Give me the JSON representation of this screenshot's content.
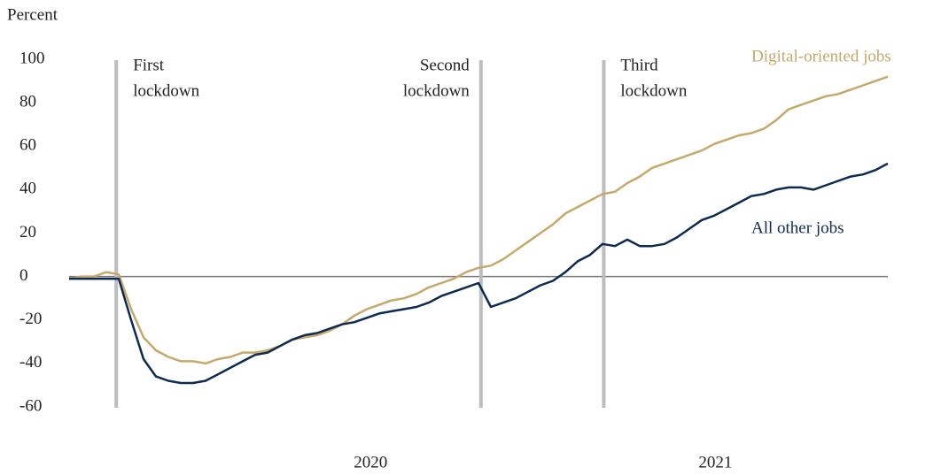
{
  "chart_data": {
    "type": "line",
    "y_axis_label": "Percent",
    "x": [
      0,
      1,
      2,
      3,
      4,
      5,
      6,
      7,
      8,
      9,
      10,
      11,
      12,
      13,
      14,
      15,
      16,
      17,
      18,
      19,
      20,
      21,
      22,
      23,
      24,
      25,
      26,
      27,
      28,
      29,
      30,
      31,
      32,
      33,
      34,
      35,
      36,
      37,
      38,
      39,
      40,
      41,
      42,
      43,
      44,
      45,
      46,
      47,
      48,
      49,
      50,
      51,
      52,
      53,
      54,
      55,
      56,
      57,
      58,
      59,
      60,
      61,
      62,
      63,
      64,
      65,
      66
    ],
    "series": [
      {
        "name": "Digital-oriented jobs",
        "color": "#c5a96a",
        "values": [
          -1,
          0,
          0,
          2,
          1,
          -15,
          -28,
          -34,
          -37,
          -39,
          -39,
          -40,
          -38,
          -37,
          -35,
          -35,
          -34,
          -32,
          -29,
          -28,
          -27,
          -25,
          -22,
          -18,
          -15,
          -13,
          -11,
          -10,
          -8,
          -5,
          -3,
          -1,
          2,
          4,
          5,
          8,
          12,
          16,
          20,
          24,
          29,
          32,
          35,
          38,
          39,
          43,
          46,
          50,
          52,
          54,
          56,
          58,
          61,
          63,
          65,
          66,
          68,
          72,
          77,
          79,
          81,
          83,
          84,
          86,
          88,
          90,
          92
        ]
      },
      {
        "name": "All other jobs",
        "color": "#0c2a52",
        "values": [
          -1,
          -1,
          -1,
          -1,
          -1,
          -20,
          -38,
          -46,
          -48,
          -49,
          -49,
          -48,
          -45,
          -42,
          -39,
          -36,
          -35,
          -32,
          -29,
          -27,
          -26,
          -24,
          -22,
          -21,
          -19,
          -17,
          -16,
          -15,
          -14,
          -12,
          -9,
          -7,
          -5,
          -3,
          -14,
          -12,
          -10,
          -7,
          -4,
          -2,
          2,
          7,
          10,
          15,
          14,
          17,
          14,
          14,
          15,
          18,
          22,
          26,
          28,
          31,
          34,
          37,
          38,
          40,
          41,
          41,
          40,
          42,
          44,
          46,
          47,
          49,
          52
        ]
      }
    ],
    "xlim": [
      0,
      66
    ],
    "xticks": [
      {
        "value": 24.3,
        "label": "2020"
      },
      {
        "value": 52.1,
        "label": "2021"
      }
    ],
    "ylim": [
      -60,
      100
    ],
    "yticks": [
      100,
      80,
      60,
      40,
      20,
      0,
      -20,
      -40,
      -60
    ],
    "annotations": [
      {
        "x": 3.8,
        "lines": [
          "First",
          "lockdown"
        ]
      },
      {
        "x": 33.2,
        "lines": [
          "Second",
          "lockdown"
        ]
      },
      {
        "x": 43.1,
        "lines": [
          "Third",
          "lockdown"
        ]
      }
    ]
  }
}
